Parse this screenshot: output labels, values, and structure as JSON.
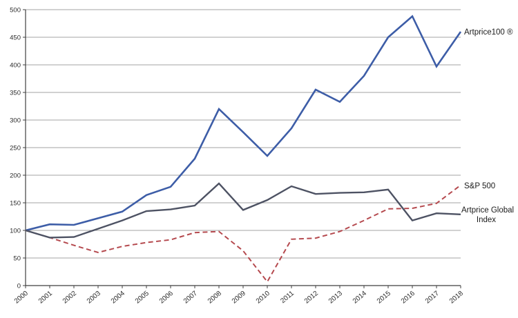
{
  "chart_data": {
    "type": "line",
    "title": "",
    "xlabel": "",
    "ylabel": "",
    "categories": [
      "2000",
      "2001",
      "2002",
      "2003",
      "2004",
      "2005",
      "2006",
      "2007",
      "2008",
      "2009",
      "2010",
      "2011",
      "2012",
      "2013",
      "2014",
      "2015",
      "2016",
      "2017",
      "2018"
    ],
    "y_axis": {
      "min": 0,
      "max": 500,
      "step": 50,
      "tick_labels": [
        "0",
        "50",
        "100",
        "150",
        "200",
        "250",
        "300",
        "350",
        "400",
        "450",
        "500"
      ]
    },
    "grid": "horizontal",
    "legend_position": "labels-at-line-ends-right",
    "colors": {
      "artprice100": "#3d5da7",
      "sp500": "#b5494e",
      "artprice_global": "#4d5263",
      "gridline": "#a3a3a3",
      "axis": "#3f3f3f"
    },
    "series": [
      {
        "name": "Artprice100 ®",
        "label_lines": [
          "Artprice100 ®"
        ],
        "color": "#3d5da7",
        "style": "solid",
        "values": [
          100,
          111,
          110,
          122,
          134,
          164,
          179,
          230,
          320,
          278,
          235,
          285,
          355,
          333,
          380,
          450,
          488,
          397,
          460
        ]
      },
      {
        "name": "S&P 500",
        "label_lines": [
          "S&P 500"
        ],
        "color": "#b5494e",
        "style": "dashed",
        "values": [
          100,
          87,
          73,
          60,
          71,
          78,
          83,
          96,
          98,
          63,
          7,
          84,
          86,
          98,
          118,
          139,
          140,
          149,
          182
        ]
      },
      {
        "name": "Artprice Global Index",
        "label_lines": [
          "Artprice Global",
          "Index"
        ],
        "color": "#4d5263",
        "style": "solid",
        "values": [
          100,
          87,
          88,
          103,
          118,
          135,
          138,
          145,
          185,
          137,
          155,
          180,
          166,
          168,
          169,
          174,
          118,
          131,
          129
        ]
      }
    ]
  }
}
